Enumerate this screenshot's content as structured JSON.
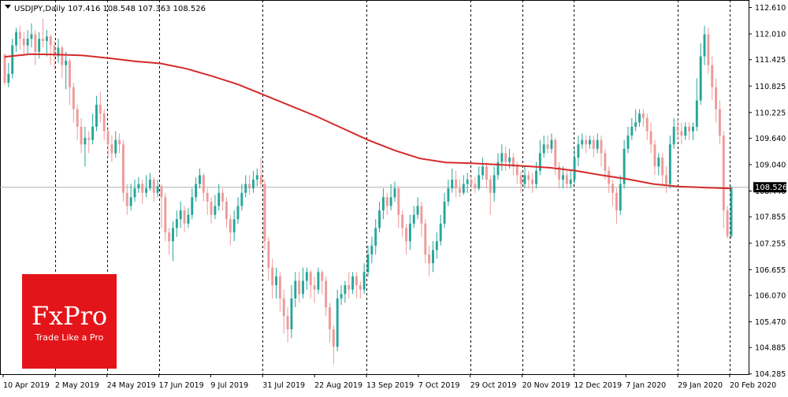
{
  "header": {
    "symbol_label": "USDJPY,Daily",
    "ohlc_label": "107.416 108.548 107.363 108.526"
  },
  "logo": {
    "brand": "FxPro",
    "tagline": "Trade Like a Pro",
    "color": "#e3151a"
  },
  "colors": {
    "bull": "#26a69a",
    "bear": "#ef9a9a",
    "moving_average": "#d42a2a",
    "price_line": "#b0b0b0",
    "price_tag": "#000000"
  },
  "chart_data": {
    "type": "candlestick",
    "title": "USDJPY,Daily",
    "ylim": [
      104.28,
      112.78
    ],
    "y_ticks": [
      "112.610",
      "112.010",
      "111.425",
      "110.825",
      "110.225",
      "109.640",
      "109.040",
      "108.440",
      "107.855",
      "107.255",
      "106.655",
      "106.070",
      "105.470",
      "104.885",
      "104.285"
    ],
    "x_ticks": [
      "10 Apr 2019",
      "2 May 2019",
      "24 May 2019",
      "17 Jun 2019",
      "9 Jul 2019",
      "31 Jul 2019",
      "22 Aug 2019",
      "13 Sep 2019",
      "7 Oct 2019",
      "29 Oct 2019",
      "20 Nov 2019",
      "12 Dec 2019",
      "7 Jan 2020",
      "29 Jan 2020",
      "20 Feb 2020"
    ],
    "grid_separators": [
      "2 May 2019",
      "24 May 2019",
      "17 Jun 2019",
      "31 Jul 2019",
      "13 Sep 2019",
      "29 Oct 2019",
      "20 Nov 2019",
      "12 Dec 2019",
      "29 Jan 2020",
      "20 Feb 2020"
    ],
    "current_price": "108.526",
    "moving_average": {
      "name": "",
      "values": [
        111.49,
        111.55,
        111.54,
        111.52,
        111.46,
        111.39,
        111.34,
        111.22,
        111.05,
        110.86,
        110.62,
        110.38,
        110.14,
        109.87,
        109.6,
        109.37,
        109.18,
        109.09,
        109.07,
        109.04,
        109.01,
        108.97,
        108.9,
        108.8,
        108.71,
        108.6,
        108.54,
        108.52,
        108.5
      ]
    },
    "candles": [
      [
        111.54,
        110.9,
        111.56,
        110.85
      ],
      [
        110.9,
        111.1,
        111.35,
        110.8
      ],
      [
        111.1,
        111.75,
        111.9,
        111.0
      ],
      [
        111.75,
        112.05,
        112.15,
        111.6
      ],
      [
        112.05,
        111.9,
        112.2,
        111.65
      ],
      [
        111.9,
        111.75,
        112.05,
        111.5
      ],
      [
        111.75,
        111.9,
        112.1,
        111.55
      ],
      [
        111.9,
        112.0,
        112.25,
        111.7
      ],
      [
        112.0,
        111.6,
        112.1,
        111.3
      ],
      [
        111.6,
        111.9,
        112.05,
        111.45
      ],
      [
        111.9,
        111.85,
        112.35,
        111.7
      ],
      [
        111.85,
        111.95,
        112.1,
        111.5
      ],
      [
        111.95,
        111.75,
        112.0,
        111.3
      ],
      [
        111.75,
        111.5,
        111.85,
        111.2
      ],
      [
        111.5,
        111.7,
        111.9,
        111.35
      ],
      [
        111.7,
        111.3,
        111.75,
        111.0
      ],
      [
        111.3,
        111.4,
        111.6,
        110.75
      ],
      [
        111.4,
        110.8,
        111.45,
        110.4
      ],
      [
        110.8,
        110.3,
        110.9,
        110.0
      ],
      [
        110.3,
        109.9,
        110.4,
        109.6
      ],
      [
        109.9,
        109.5,
        110.1,
        109.3
      ],
      [
        109.5,
        109.65,
        109.9,
        109.0
      ],
      [
        109.65,
        109.6,
        109.8,
        109.3
      ],
      [
        109.6,
        109.9,
        110.2,
        109.5
      ],
      [
        109.9,
        110.4,
        110.6,
        109.8
      ],
      [
        110.4,
        110.2,
        110.7,
        110.0
      ],
      [
        110.2,
        109.8,
        110.3,
        109.6
      ],
      [
        109.8,
        109.5,
        109.9,
        109.2
      ],
      [
        109.5,
        109.3,
        109.7,
        109.1
      ],
      [
        109.3,
        109.6,
        109.8,
        109.2
      ],
      [
        109.6,
        109.5,
        109.75,
        109.3
      ],
      [
        109.5,
        108.4,
        109.6,
        108.2
      ],
      [
        108.4,
        108.1,
        108.6,
        107.9
      ],
      [
        108.1,
        108.3,
        108.6,
        108.0
      ],
      [
        108.3,
        108.5,
        108.7,
        108.2
      ],
      [
        108.5,
        108.6,
        108.75,
        108.4
      ],
      [
        108.6,
        108.4,
        108.7,
        108.15
      ],
      [
        108.4,
        108.5,
        108.8,
        108.3
      ],
      [
        108.5,
        108.7,
        108.85,
        108.45
      ],
      [
        108.7,
        108.4,
        108.75,
        108.2
      ],
      [
        108.4,
        108.55,
        108.7,
        108.3
      ],
      [
        108.55,
        108.3,
        108.6,
        107.6
      ],
      [
        108.3,
        107.5,
        108.4,
        107.3
      ],
      [
        107.5,
        107.3,
        107.6,
        107.0
      ],
      [
        107.3,
        107.6,
        107.75,
        106.85
      ],
      [
        107.6,
        107.8,
        108.0,
        107.4
      ],
      [
        107.8,
        108.0,
        108.2,
        107.6
      ],
      [
        108.0,
        107.7,
        108.1,
        107.5
      ],
      [
        107.7,
        107.9,
        108.05,
        107.6
      ],
      [
        107.9,
        108.3,
        108.5,
        107.8
      ],
      [
        108.3,
        108.6,
        108.75,
        108.2
      ],
      [
        108.6,
        108.8,
        108.95,
        108.5
      ],
      [
        108.8,
        108.4,
        108.85,
        108.2
      ],
      [
        108.4,
        108.2,
        108.5,
        107.9
      ],
      [
        108.2,
        107.9,
        108.3,
        107.7
      ],
      [
        107.9,
        108.1,
        108.35,
        107.8
      ],
      [
        108.1,
        108.4,
        108.6,
        108.0
      ],
      [
        108.4,
        108.2,
        108.5,
        108.0
      ],
      [
        108.2,
        107.8,
        108.3,
        107.6
      ],
      [
        107.8,
        107.5,
        107.9,
        107.2
      ],
      [
        107.5,
        107.8,
        108.0,
        107.3
      ],
      [
        107.8,
        108.1,
        108.3,
        107.7
      ],
      [
        108.1,
        108.4,
        108.6,
        108.0
      ],
      [
        108.4,
        108.6,
        108.8,
        108.3
      ],
      [
        108.6,
        108.5,
        108.8,
        108.35
      ],
      [
        108.5,
        108.7,
        108.9,
        108.4
      ],
      [
        108.7,
        108.8,
        108.95,
        108.55
      ],
      [
        108.8,
        108.6,
        109.2,
        108.5
      ],
      [
        108.6,
        107.3,
        108.7,
        107.1
      ],
      [
        107.3,
        106.7,
        107.4,
        106.4
      ],
      [
        106.7,
        106.3,
        106.9,
        106.0
      ],
      [
        106.3,
        106.5,
        106.7,
        106.0
      ],
      [
        106.5,
        106.0,
        106.6,
        105.7
      ],
      [
        106.0,
        105.6,
        106.2,
        105.2
      ],
      [
        105.6,
        105.3,
        105.8,
        105.0
      ],
      [
        105.3,
        106.0,
        106.3,
        105.1
      ],
      [
        106.0,
        106.4,
        106.6,
        105.8
      ],
      [
        106.4,
        106.1,
        106.6,
        105.9
      ],
      [
        106.1,
        106.4,
        106.7,
        106.0
      ],
      [
        106.4,
        106.6,
        106.7,
        106.2
      ],
      [
        106.6,
        106.3,
        106.65,
        106.0
      ],
      [
        106.3,
        106.2,
        106.5,
        105.9
      ],
      [
        106.2,
        106.6,
        106.7,
        106.1
      ],
      [
        106.6,
        106.4,
        106.65,
        106.1
      ],
      [
        106.4,
        105.8,
        106.5,
        105.6
      ],
      [
        105.8,
        105.3,
        105.9,
        105.0
      ],
      [
        105.3,
        104.9,
        105.4,
        104.5
      ],
      [
        104.9,
        106.0,
        106.2,
        104.8
      ],
      [
        106.0,
        106.1,
        106.3,
        105.85
      ],
      [
        106.1,
        106.3,
        106.4,
        105.9
      ],
      [
        106.3,
        106.2,
        106.6,
        106.0
      ],
      [
        106.2,
        106.5,
        106.6,
        106.1
      ],
      [
        106.5,
        106.3,
        106.6,
        106.0
      ],
      [
        106.3,
        106.2,
        106.4,
        106.0
      ],
      [
        106.2,
        106.6,
        106.8,
        106.1
      ],
      [
        106.6,
        107.0,
        107.2,
        106.5
      ],
      [
        107.0,
        107.2,
        107.4,
        106.8
      ],
      [
        107.2,
        107.6,
        107.8,
        107.0
      ],
      [
        107.6,
        108.0,
        108.2,
        107.5
      ],
      [
        108.0,
        108.3,
        108.5,
        107.8
      ],
      [
        108.3,
        108.1,
        108.4,
        107.9
      ],
      [
        108.1,
        108.3,
        108.6,
        108.0
      ],
      [
        108.3,
        108.5,
        108.65,
        108.2
      ],
      [
        108.5,
        107.9,
        108.55,
        107.6
      ],
      [
        107.9,
        107.6,
        108.0,
        107.4
      ],
      [
        107.6,
        107.3,
        107.7,
        107.0
      ],
      [
        107.3,
        107.7,
        107.9,
        107.1
      ],
      [
        107.7,
        107.9,
        108.1,
        107.6
      ],
      [
        107.9,
        108.1,
        108.3,
        107.8
      ],
      [
        108.1,
        107.7,
        108.2,
        107.4
      ],
      [
        107.7,
        107.0,
        107.8,
        106.8
      ],
      [
        107.0,
        106.8,
        107.2,
        106.5
      ],
      [
        106.8,
        107.1,
        107.3,
        106.6
      ],
      [
        107.1,
        107.3,
        107.5,
        106.9
      ],
      [
        107.3,
        107.7,
        107.9,
        107.2
      ],
      [
        107.7,
        108.2,
        108.4,
        107.6
      ],
      [
        108.2,
        108.5,
        108.7,
        108.1
      ],
      [
        108.5,
        108.7,
        108.95,
        108.4
      ],
      [
        108.7,
        108.5,
        108.9,
        108.3
      ],
      [
        108.5,
        108.4,
        108.7,
        108.3
      ],
      [
        108.4,
        108.6,
        108.8,
        108.35
      ],
      [
        108.6,
        108.7,
        108.85,
        108.4
      ],
      [
        108.7,
        108.6,
        108.8,
        108.5
      ],
      [
        108.6,
        108.5,
        108.75,
        108.4
      ],
      [
        108.5,
        108.8,
        109.0,
        108.45
      ],
      [
        108.8,
        109.0,
        109.2,
        108.7
      ],
      [
        109.0,
        108.7,
        109.1,
        108.5
      ],
      [
        108.7,
        108.4,
        108.8,
        107.9
      ],
      [
        108.4,
        108.8,
        109.0,
        108.2
      ],
      [
        108.8,
        109.1,
        109.3,
        108.7
      ],
      [
        109.1,
        109.3,
        109.5,
        108.9
      ],
      [
        109.3,
        109.1,
        109.45,
        108.9
      ],
      [
        109.1,
        109.2,
        109.4,
        108.95
      ],
      [
        109.2,
        109.0,
        109.3,
        108.8
      ],
      [
        109.0,
        108.8,
        109.1,
        108.6
      ],
      [
        108.8,
        108.6,
        108.9,
        108.4
      ],
      [
        108.6,
        108.8,
        109.0,
        108.5
      ],
      [
        108.8,
        108.7,
        108.9,
        108.5
      ],
      [
        108.7,
        108.6,
        108.85,
        108.4
      ],
      [
        108.6,
        108.9,
        109.1,
        108.5
      ],
      [
        108.9,
        109.3,
        109.6,
        108.8
      ],
      [
        109.3,
        109.5,
        109.7,
        109.2
      ],
      [
        109.5,
        109.4,
        109.7,
        109.3
      ],
      [
        109.4,
        109.6,
        109.75,
        109.3
      ],
      [
        109.6,
        109.0,
        109.65,
        108.8
      ],
      [
        109.0,
        108.7,
        109.1,
        108.5
      ],
      [
        108.7,
        108.8,
        109.0,
        108.5
      ],
      [
        108.8,
        108.6,
        108.9,
        108.5
      ],
      [
        108.6,
        108.7,
        108.9,
        108.5
      ],
      [
        108.7,
        109.2,
        109.4,
        108.6
      ],
      [
        109.2,
        109.5,
        109.7,
        109.0
      ],
      [
        109.5,
        109.6,
        109.75,
        109.4
      ],
      [
        109.6,
        109.5,
        109.7,
        109.3
      ],
      [
        109.5,
        109.6,
        109.7,
        109.4
      ],
      [
        109.6,
        109.4,
        109.7,
        109.2
      ],
      [
        109.4,
        109.6,
        109.75,
        109.3
      ],
      [
        109.6,
        109.3,
        109.7,
        109.0
      ],
      [
        109.3,
        108.9,
        109.4,
        108.7
      ],
      [
        108.9,
        108.6,
        109.0,
        108.4
      ],
      [
        108.6,
        108.4,
        108.7,
        108.1
      ],
      [
        108.4,
        108.0,
        108.5,
        107.7
      ],
      [
        108.0,
        108.6,
        108.8,
        107.9
      ],
      [
        108.6,
        109.4,
        109.6,
        108.5
      ],
      [
        109.4,
        109.7,
        109.9,
        109.3
      ],
      [
        109.7,
        109.9,
        110.1,
        109.6
      ],
      [
        109.9,
        110.0,
        110.3,
        109.8
      ],
      [
        110.0,
        110.2,
        110.3,
        109.9
      ],
      [
        110.2,
        110.1,
        110.3,
        109.9
      ],
      [
        110.1,
        109.8,
        110.2,
        109.6
      ],
      [
        109.8,
        109.5,
        110.0,
        109.3
      ],
      [
        109.5,
        109.0,
        109.6,
        108.8
      ],
      [
        109.0,
        109.2,
        109.3,
        108.8
      ],
      [
        109.2,
        108.8,
        109.3,
        108.6
      ],
      [
        108.8,
        108.6,
        109.0,
        108.4
      ],
      [
        108.6,
        109.5,
        109.7,
        108.5
      ],
      [
        109.5,
        109.9,
        110.1,
        109.4
      ],
      [
        109.9,
        109.8,
        110.1,
        109.6
      ],
      [
        109.8,
        109.7,
        110.0,
        109.5
      ],
      [
        109.7,
        109.9,
        110.0,
        109.6
      ],
      [
        109.9,
        109.8,
        110.0,
        109.6
      ],
      [
        109.8,
        109.9,
        110.0,
        109.6
      ],
      [
        109.9,
        110.5,
        111.0,
        109.8
      ],
      [
        110.5,
        111.5,
        111.8,
        110.4
      ],
      [
        111.5,
        112.0,
        112.2,
        111.3
      ],
      [
        112.0,
        111.3,
        112.15,
        111.1
      ],
      [
        111.3,
        110.8,
        111.5,
        110.5
      ],
      [
        110.8,
        110.3,
        111.0,
        110.0
      ],
      [
        110.3,
        109.7,
        110.5,
        109.5
      ],
      [
        109.7,
        108.0,
        109.8,
        107.6
      ],
      [
        108.0,
        107.416,
        108.1,
        107.363
      ],
      [
        107.416,
        108.526,
        108.548,
        107.363
      ]
    ]
  }
}
